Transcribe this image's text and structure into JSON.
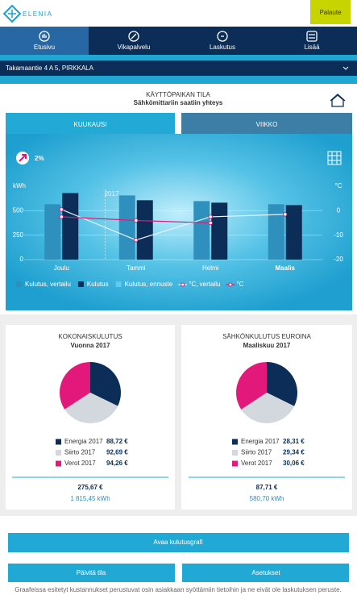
{
  "header": {
    "logo": "ELENIA",
    "feedback": "Palaute"
  },
  "nav": [
    "Etusivu",
    "Vikapalvelu",
    "Laskutus",
    "Lisää"
  ],
  "address": "Takamaantie 4 A 5, PIRKKALA",
  "status": {
    "title": "KÄYTTÖPAIKAN TILA",
    "subtitle": "Sähkömittariin saatiin yhteys"
  },
  "tabs": [
    "KUUKAUSI",
    "VIIKKO"
  ],
  "chart_data": [
    {
      "type": "bar",
      "change": "2%",
      "annotation": "2017",
      "ylabel": "kWh",
      "y2label": "°C",
      "categories": [
        "Joulu",
        "Tammi",
        "Helmi",
        "Maalis"
      ],
      "series": [
        {
          "name": "Kulutus, vertailu",
          "type": "bar",
          "color": "#2f8fbd",
          "values": [
            566,
            656,
            598,
            566
          ]
        },
        {
          "name": "Kulutus",
          "type": "bar",
          "color": "#0b2d57",
          "values": [
            680,
            607,
            582,
            557
          ]
        },
        {
          "name": "Kulutus, ennuste",
          "type": "bar",
          "color": "#5ccbee",
          "values": [
            null,
            null,
            null,
            null
          ]
        },
        {
          "name": "°C, vertailu",
          "type": "line",
          "axis": "y2",
          "color": "#e6f3fa",
          "values": [
            0.5,
            -12,
            -2.5,
            -1.5
          ]
        },
        {
          "name": "°C",
          "type": "line",
          "axis": "y2",
          "color": "#d81b7a",
          "values": [
            -2.5,
            -4,
            -5,
            null
          ]
        }
      ],
      "ylim": [
        0,
        750
      ],
      "yticks": [
        0,
        250,
        500
      ],
      "y2lim": [
        -20,
        10
      ],
      "y2ticks": [
        -20,
        -10,
        0
      ],
      "grid": true
    },
    {
      "type": "pie",
      "title": "KOKONAISKULUTUS",
      "subtitle": "Vuonna 2017",
      "categories": [
        "Energia 2017",
        "Siirto 2017",
        "Verot 2017"
      ],
      "values": [
        88.72,
        92.69,
        94.26
      ],
      "value_labels": [
        "88,72 €",
        "92,69 €",
        "94,26 €"
      ],
      "colors": [
        "#0b2d57",
        "#d3d8de",
        "#e2197a"
      ],
      "total": "275,67 €",
      "total_energy": "1 815,45 kWh"
    },
    {
      "type": "pie",
      "title": "SÄHKÖNKULUTUS EUROINA",
      "subtitle": "Maaliskuu 2017",
      "categories": [
        "Energia 2017",
        "Siirto 2017",
        "Verot 2017"
      ],
      "values": [
        28.31,
        29.34,
        30.06
      ],
      "value_labels": [
        "28,31 €",
        "29,34 €",
        "30,06 €"
      ],
      "colors": [
        "#0b2d57",
        "#d3d8de",
        "#e2197a"
      ],
      "total": "87,71 €",
      "total_energy": "580,70 kWh"
    }
  ],
  "buttons": [
    "Avaa kulutusgrafi",
    "Päivitä tila",
    "Asetukset"
  ],
  "footnote": "Graafeissa esitetyt kustannukset perustuvat osin asiakkaan syöttämiin tietoihin ja ne eivät ole laskutuksen peruste."
}
